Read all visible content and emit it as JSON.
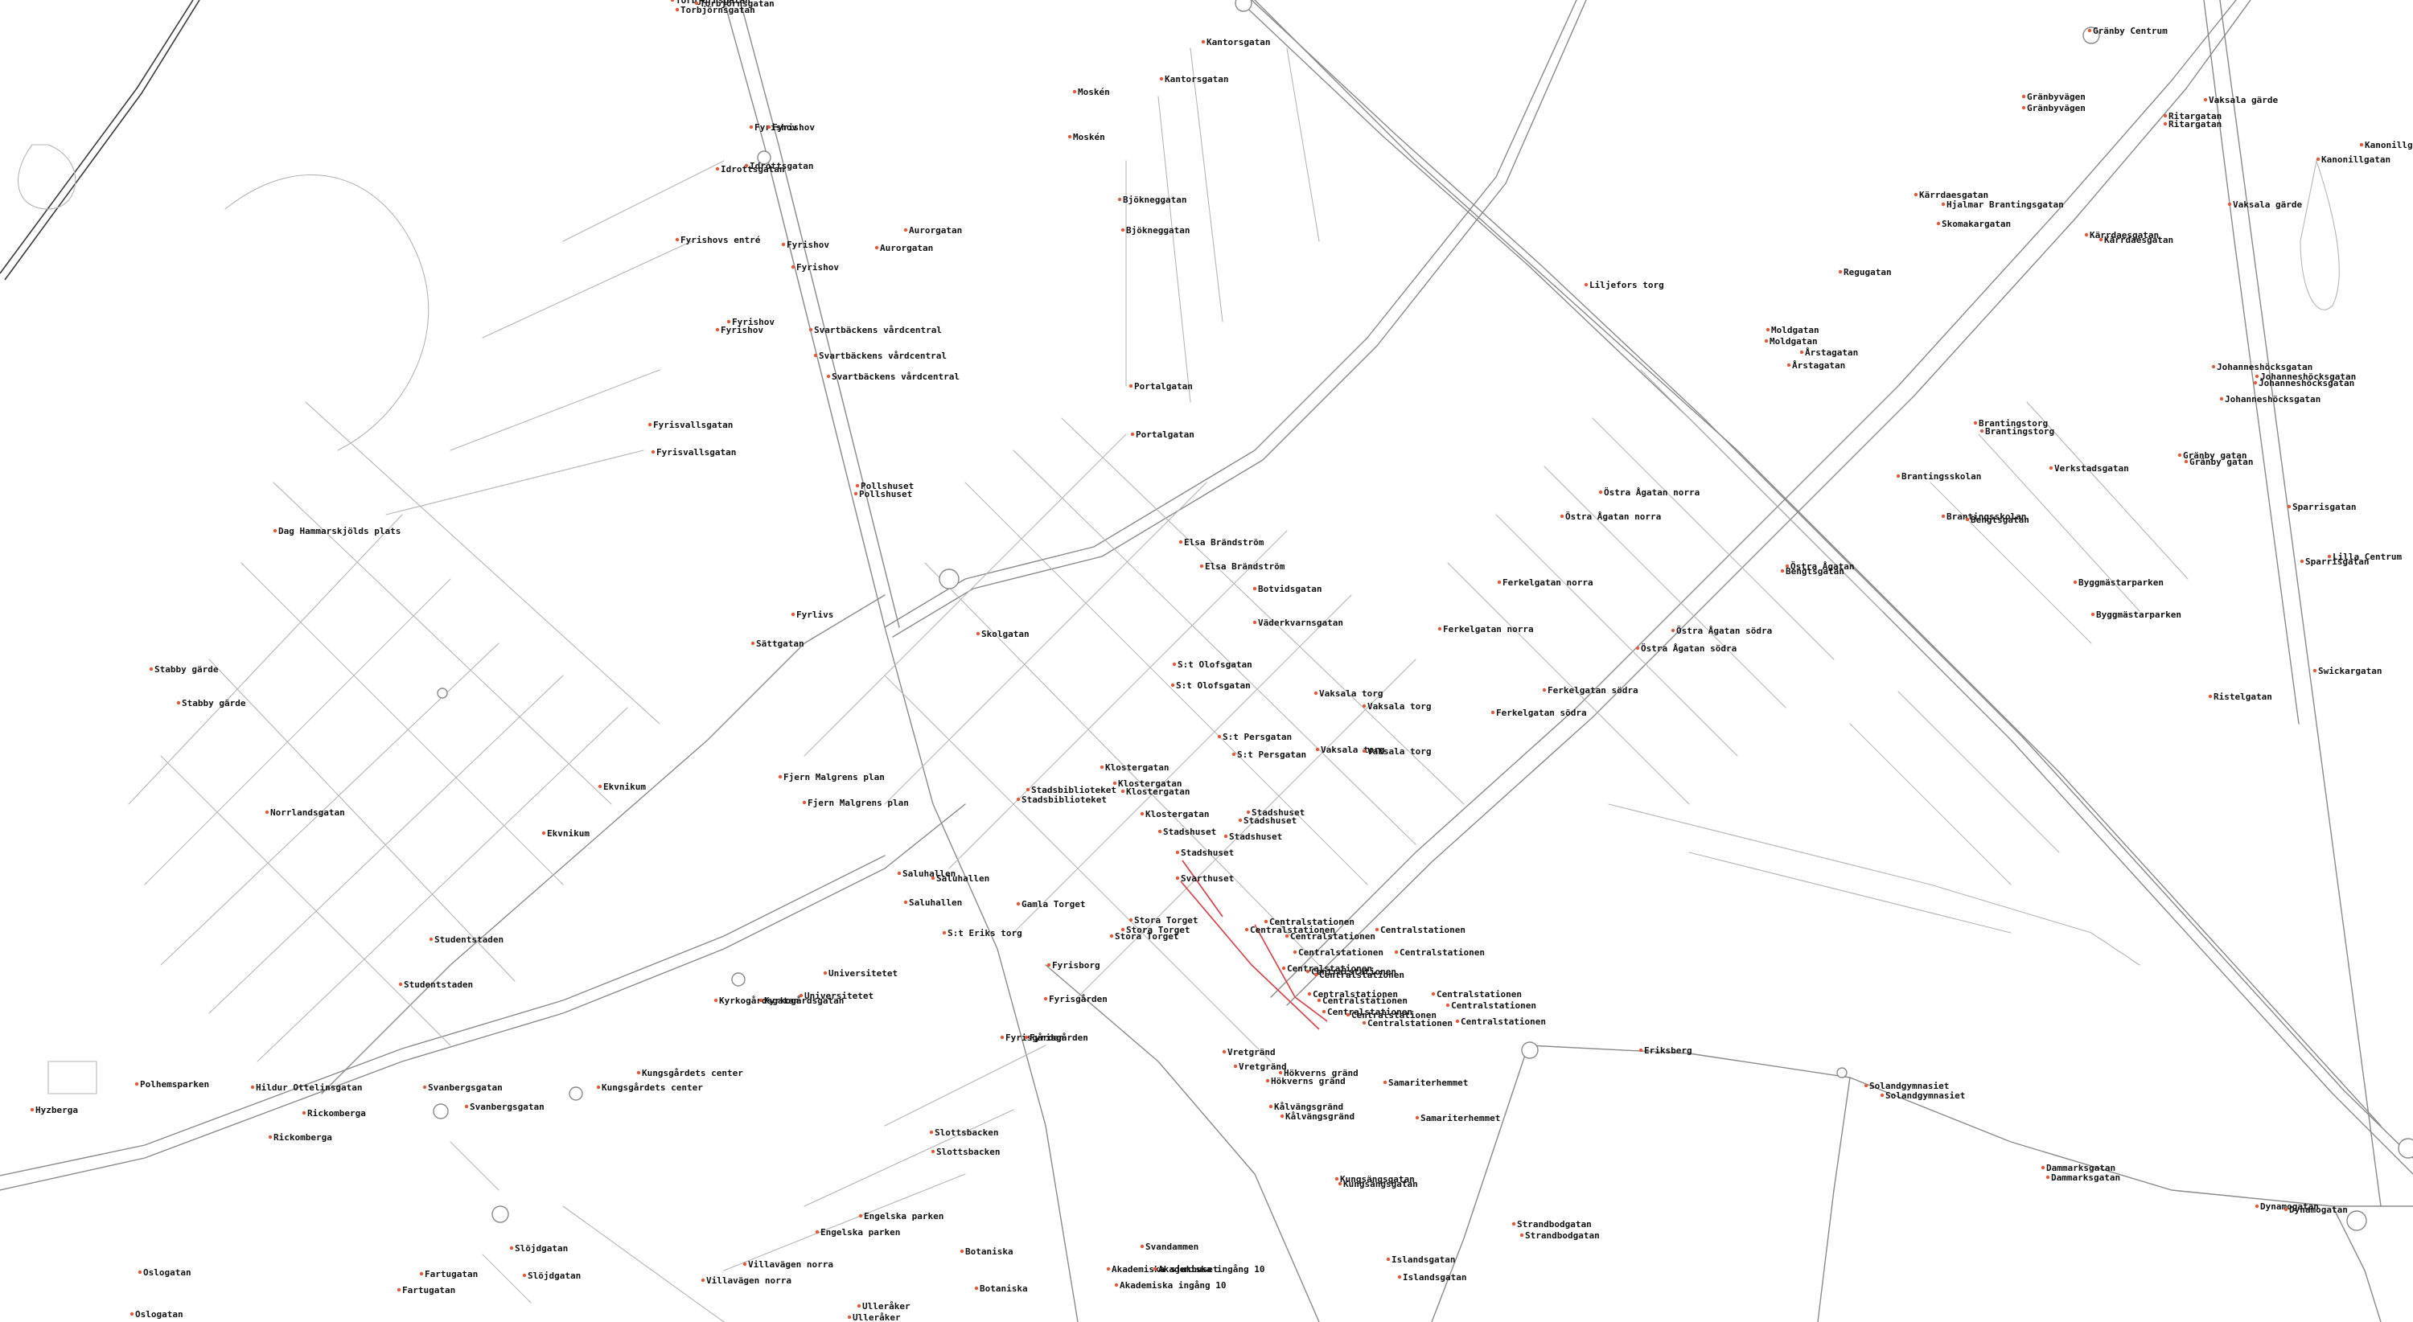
{
  "colors": {
    "background": "#ffffff",
    "road": "#8a8a8a",
    "route": "#e0393e",
    "stop": "#e05a3a",
    "label": "#111111"
  },
  "stops": [
    [
      "Torbjörnsgatan",
      840,
      4
    ],
    [
      "Torbjörnsgatan",
      846,
      16
    ],
    [
      "Torbjörnsgatan",
      870,
      8
    ],
    [
      "Gränby Centrum",
      2602,
      42
    ],
    [
      "Kantorsgatan",
      1500,
      56
    ],
    [
      "Kantorsgatan",
      1448,
      102
    ],
    [
      "Moskén",
      1340,
      118
    ],
    [
      "Moskén",
      1334,
      174
    ],
    [
      "Gränbyvägen",
      2520,
      124
    ],
    [
      "Gränbyvägen",
      2520,
      138
    ],
    [
      "Vaksala gärde",
      2746,
      128
    ],
    [
      "Ritargatan",
      2696,
      148
    ],
    [
      "Ritargatan",
      2696,
      158
    ],
    [
      "Kanonillgatan",
      2940,
      184
    ],
    [
      "Kanonillgatan",
      2886,
      202
    ],
    [
      "Fyrishov",
      938,
      162
    ],
    [
      "Fyrishov",
      960,
      162
    ],
    [
      "Idrottsgatan",
      896,
      214
    ],
    [
      "Idrottsgatan",
      932,
      210
    ],
    [
      "Bjökneggatan",
      1396,
      252
    ],
    [
      "Bjökneggatan",
      1400,
      290
    ],
    [
      "Aurorgatan",
      1130,
      290
    ],
    [
      "Aurorgatan",
      1094,
      312
    ],
    [
      "Fyrishovs entré",
      846,
      302
    ],
    [
      "Fyrishov",
      978,
      308
    ],
    [
      "Fyrishov",
      990,
      336
    ],
    [
      "Kärrdaesgatan",
      2386,
      246
    ],
    [
      "Hjalmar Brantingsgatan",
      2420,
      258
    ],
    [
      "Skomakargatan",
      2414,
      282
    ],
    [
      "Kärrdaesgatan",
      2598,
      296
    ],
    [
      "Kärrdaesgatan",
      2616,
      302
    ],
    [
      "Vaksala gärde",
      2776,
      258
    ],
    [
      "Regugatan",
      2292,
      342
    ],
    [
      "Liljefors torg",
      1976,
      358
    ],
    [
      "Fyrishov",
      910,
      404
    ],
    [
      "Fyrishov",
      896,
      414
    ],
    [
      "Svartbäckens vårdcentral",
      1012,
      414
    ],
    [
      "Svartbäckens vårdcentral",
      1018,
      446
    ],
    [
      "Svartbäckens vårdcentral",
      1034,
      472
    ],
    [
      "Moldgatan",
      2202,
      414
    ],
    [
      "Moldgatan",
      2200,
      428
    ],
    [
      "Årstagatan",
      2244,
      442
    ],
    [
      "Årstagatan",
      2228,
      458
    ],
    [
      "Johanneshöcksgatan",
      2756,
      460
    ],
    [
      "Johanneshöcksgatan",
      2810,
      472
    ],
    [
      "Johanneshöcksgatan",
      2808,
      480
    ],
    [
      "Johanneshöcksgatan",
      2766,
      500
    ],
    [
      "Portalgatan",
      1410,
      484
    ],
    [
      "Portalgatan",
      1412,
      544
    ],
    [
      "Fyrisvallsgatan",
      812,
      532
    ],
    [
      "Fyrisvallsgatan",
      816,
      566
    ],
    [
      "Brantingstorg",
      2460,
      530
    ],
    [
      "Brantingstorg",
      2468,
      540
    ],
    [
      "Pollshuset",
      1070,
      608
    ],
    [
      "Pollshuset",
      1068,
      618
    ],
    [
      "Gränby gatan",
      2714,
      570
    ],
    [
      "Gränby gatan",
      2722,
      578
    ],
    [
      "Verkstadsgatan",
      2554,
      586
    ],
    [
      "Brantingsskolan",
      2364,
      596
    ],
    [
      "Östra Ågatan norra",
      1994,
      616
    ],
    [
      "Östra Ågatan norra",
      1946,
      646
    ],
    [
      "Sparrisgatan",
      2850,
      634
    ],
    [
      "Brantingsskolan",
      2420,
      646
    ],
    [
      "Bengtsgatan",
      2450,
      650
    ],
    [
      "Lilla Centrum",
      2900,
      696
    ],
    [
      "Sparrisgatan",
      2866,
      702
    ],
    [
      "Elsa Brändström",
      1472,
      678
    ],
    [
      "Elsa Brändström",
      1498,
      708
    ],
    [
      "Östra Ågatan",
      2226,
      708
    ],
    [
      "Bengtsgatan",
      2220,
      714
    ],
    [
      "Botvidsgatan",
      1564,
      736
    ],
    [
      "Ferkelgatan norra",
      1868,
      728
    ],
    [
      "Ferkelgatan norra",
      1794,
      786
    ],
    [
      "Byggmästarparken",
      2584,
      728
    ],
    [
      "Byggmästarparken",
      2606,
      768
    ],
    [
      "Ekvnikum",
      750,
      982
    ],
    [
      "Ekvnikum",
      680,
      1040
    ],
    [
      "Fyrlivs",
      990,
      768
    ],
    [
      "Sättgatan",
      940,
      804
    ],
    [
      "Skolgatan",
      1220,
      792
    ],
    [
      "Väderkvarnsgatan",
      1564,
      778
    ],
    [
      "Östra Ågatan södra",
      2084,
      788
    ],
    [
      "Östra Ågatan södra",
      2040,
      810
    ],
    [
      "Stabby gärde",
      192,
      836
    ],
    [
      "Stabby gärde",
      226,
      878
    ],
    [
      "S:t Olofsgatan",
      1464,
      830
    ],
    [
      "S:t Olofsgatan",
      1462,
      856
    ],
    [
      "Vaksala torg",
      1640,
      866
    ],
    [
      "Vaksala torg",
      1700,
      882
    ],
    [
      "Ferkelgatan södra",
      1924,
      862
    ],
    [
      "Ferkelgatan södra",
      1860,
      890
    ],
    [
      "Swickargatan",
      2882,
      838
    ],
    [
      "Ristelgatan",
      2752,
      870
    ],
    [
      "Dag Hammarskjölds plats",
      346,
      664
    ],
    [
      "S:t Persgatan",
      1520,
      920
    ],
    [
      "S:t Persgatan",
      1538,
      942
    ],
    [
      "Vaksala torg",
      1642,
      936
    ],
    [
      "Vaksala torg",
      1700,
      938
    ],
    [
      "Fjern Malgrens plan",
      974,
      970
    ],
    [
      "Fjern Malgrens plan",
      1004,
      1002
    ],
    [
      "Klostergatan",
      1374,
      958
    ],
    [
      "Stadsbiblioteket",
      1282,
      986
    ],
    [
      "Stadsbiblioteket",
      1270,
      998
    ],
    [
      "Klostergatan",
      1390,
      978
    ],
    [
      "Klostergatan",
      1400,
      988
    ],
    [
      "Klostergatan",
      1424,
      1016
    ],
    [
      "Stadshuset",
      1556,
      1014
    ],
    [
      "Stadshuset",
      1546,
      1024
    ],
    [
      "Stadshuset",
      1446,
      1038
    ],
    [
      "Stadshuset",
      1528,
      1044
    ],
    [
      "Stadshuset",
      1468,
      1064
    ],
    [
      "Norrlandsgatan",
      336,
      1014
    ],
    [
      "Saluhallen",
      1122,
      1090
    ],
    [
      "Saluhallen",
      1164,
      1096
    ],
    [
      "Saluhallen",
      1130,
      1126
    ],
    [
      "Svarthuset",
      1468,
      1096
    ],
    [
      "Gamla Torget",
      1270,
      1128
    ],
    [
      "Centralstationen",
      1578,
      1150
    ],
    [
      "Centralstationen",
      1554,
      1160
    ],
    [
      "Centralstationen",
      1604,
      1168
    ],
    [
      "Centralstationen",
      1614,
      1188
    ],
    [
      "Stora Torget",
      1410,
      1148
    ],
    [
      "Stora Torget",
      1400,
      1160
    ],
    [
      "Stora Torget",
      1386,
      1168
    ],
    [
      "S:t Eriks torg",
      1178,
      1164
    ],
    [
      "Centralstationen",
      1716,
      1160
    ],
    [
      "Centralstationen",
      1740,
      1188
    ],
    [
      "Centralstationen",
      1600,
      1208
    ],
    [
      "Centralstationen",
      1630,
      1212
    ],
    [
      "Centralstationen",
      1640,
      1216
    ],
    [
      "Centralstationen",
      1786,
      1240
    ],
    [
      "Centralstationen",
      1804,
      1254
    ],
    [
      "Centralstationen",
      1816,
      1274
    ],
    [
      "Centralstationen",
      1632,
      1240
    ],
    [
      "Centralstationen",
      1644,
      1248
    ],
    [
      "Centralstationen",
      1650,
      1262
    ],
    [
      "Centralstationen",
      1680,
      1266
    ],
    [
      "Centralstationen",
      1700,
      1276
    ],
    [
      "Studentstaden",
      540,
      1172
    ],
    [
      "Studentstaden",
      502,
      1228
    ],
    [
      "Universitetet",
      1030,
      1214
    ],
    [
      "Universitetet",
      1000,
      1242
    ],
    [
      "Kyrkogårdsgatan",
      894,
      1248
    ],
    [
      "Kyrkogårdsgatan",
      950,
      1248
    ],
    [
      "Fyrisborg",
      1308,
      1204
    ],
    [
      "Fyrisgården",
      1304,
      1246
    ],
    [
      "Fyrisgården",
      1250,
      1294
    ],
    [
      "Fyrisgården",
      1280,
      1294
    ],
    [
      "Kungsgårdets center",
      798,
      1338
    ],
    [
      "Kungsgårdets center",
      748,
      1356
    ],
    [
      "Vretgränd",
      1526,
      1312
    ],
    [
      "Vretgränd",
      1540,
      1330
    ],
    [
      "Hökverns gränd",
      1596,
      1338
    ],
    [
      "Hökverns gränd",
      1580,
      1348
    ],
    [
      "Samariterhemmet",
      1726,
      1350
    ],
    [
      "Samariterhemmet",
      1766,
      1394
    ],
    [
      "Kålvängsgränd",
      1584,
      1380
    ],
    [
      "Kålvängsgränd",
      1598,
      1392
    ],
    [
      "Eriksberg",
      2044,
      1310
    ],
    [
      "Solandgymnasiet",
      2324,
      1354
    ],
    [
      "Solandgymnasiet",
      2344,
      1366
    ],
    [
      "Polhemsparken",
      174,
      1352
    ],
    [
      "Hildur Ottelinsgatan",
      318,
      1356
    ],
    [
      "Svanbergsgatan",
      532,
      1356
    ],
    [
      "Svanbergsgatan",
      584,
      1380
    ],
    [
      "Hyzberga",
      44,
      1384
    ],
    [
      "Rickomberga",
      382,
      1388
    ],
    [
      "Rickomberga",
      340,
      1418
    ],
    [
      "Slottsbacken",
      1162,
      1412
    ],
    [
      "Slottsbacken",
      1164,
      1436
    ],
    [
      "Kungsängsgatan",
      1666,
      1470
    ],
    [
      "Kungsängsgatan",
      1670,
      1476
    ],
    [
      "Dammarksgatan",
      2544,
      1456
    ],
    [
      "Dammarksgatan",
      2550,
      1468
    ],
    [
      "Engelska parken",
      1074,
      1516
    ],
    [
      "Engelska parken",
      1020,
      1536
    ],
    [
      "Strandbodgatan",
      1886,
      1526
    ],
    [
      "Strandbodgatan",
      1896,
      1540
    ],
    [
      "Dynamogatan",
      2810,
      1504
    ],
    [
      "Dynamogatan",
      2846,
      1508
    ],
    [
      "Botaniska",
      1200,
      1560
    ],
    [
      "Botaniska",
      1218,
      1606
    ],
    [
      "Svandammen",
      1424,
      1554
    ],
    [
      "Islandsgatan",
      1730,
      1570
    ],
    [
      "Islandsgatan",
      1744,
      1592
    ],
    [
      "Slöjdgatan",
      640,
      1556
    ],
    [
      "Slöjdgatan",
      656,
      1590
    ],
    [
      "Villavägen norra",
      930,
      1576
    ],
    [
      "Villavägen norra",
      878,
      1596
    ],
    [
      "Fartugatan",
      528,
      1588
    ],
    [
      "Fartugatan",
      500,
      1608
    ],
    [
      "Akademiska sjukhuset",
      1382,
      1582
    ],
    [
      "Akademiska ingång 10",
      1392,
      1602
    ],
    [
      "Akademiska ingång 10",
      1440,
      1582
    ],
    [
      "Ulleråker",
      1072,
      1628
    ],
    [
      "Ulleråker",
      1060,
      1642
    ],
    [
      "Oslogatan",
      178,
      1586
    ],
    [
      "Oslogatan",
      168,
      1638
    ]
  ]
}
